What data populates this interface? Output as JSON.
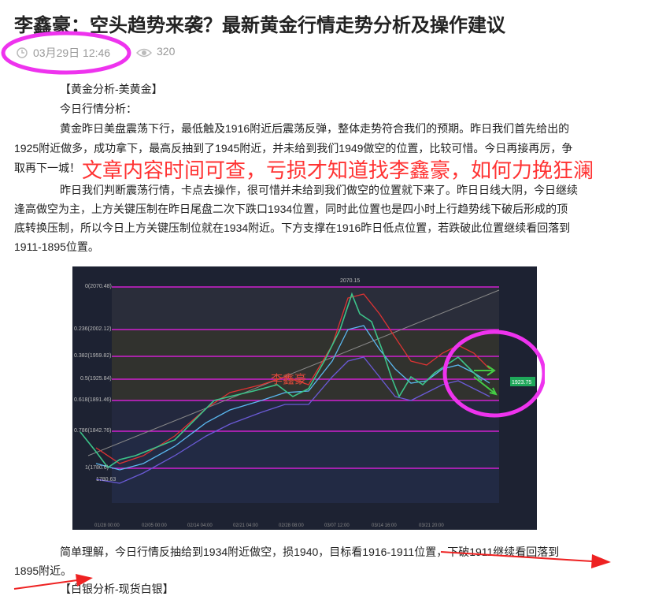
{
  "header": {
    "title": "李鑫豪：空头趋势来袭？最新黄金行情走势分析及操作建议",
    "date": "03月29日 12:46",
    "views": "320"
  },
  "body": {
    "lines": [
      "【黄金分析-美黄金】",
      "今日行情分析：",
      "黄金昨日美盘震荡下行，最低触及1916附近后震荡反弹，整体走势符合我们的预期。昨日我们首先给出的",
      "1925附近做多，成功拿下，最高反抽到了1945附近，并未给到我们1949做空的位置，比较可惜。今日再接再厉，争",
      "取再下一城！",
      "昨日我们判断震荡行情，卡点去操作，很可惜并未给到我们做空的位置就下来了。昨日日线大阴，今日继续",
      "逢高做空为主，上方关键压制在昨日尾盘二次下跌口1934位置，同时此位置也是四小时上行趋势线下破后形成的顶",
      "底转换压制，所以今日上方关键压制位就在1934附近。下方支撑在1916昨日低点位置，若跌破此位置继续看回落到",
      "1911-1895位置。"
    ],
    "overlay": "文章内容时间可查，亏损才知道找李鑫豪，如何力挽狂澜",
    "after_lines": [
      "简单理解，今日行情反抽给到1934附近做空，损1940，目标看1916-1911位置，下破1911继续看回落到",
      "1895附近。",
      "【白银分析-现货白银】"
    ]
  },
  "chart_image": {
    "fib_labels": [
      "0(2070.48)",
      "0.236(2002.12)",
      "0.382(1959.82)",
      "0.5(1925.84)",
      "0.618(1891.46)",
      "0.786(1842.76)",
      "1(1780.6)"
    ],
    "high_label": "2070.15",
    "low_label": "1780.63",
    "watermark": "李鑫豪",
    "price_tag": "1923.75",
    "x_labels": [
      "01/28 00:00",
      "02/05 00:00",
      "02/14 04:00",
      "02/21 04:00",
      "02/28 08:00",
      "03/07 12:00",
      "03/14 16:00",
      "03/21 20:00"
    ]
  }
}
